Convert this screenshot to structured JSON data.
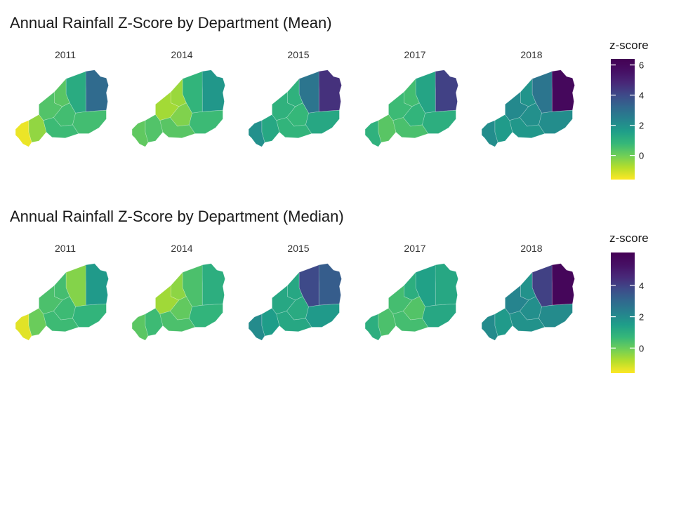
{
  "panels": [
    {
      "title": "Annual Rainfall Z-Score by Department (Mean)",
      "legend_title": "z-score",
      "legend_ticks": [
        "6",
        "4",
        "2",
        "0"
      ],
      "legend_range": [
        -1.6,
        6.4
      ],
      "facets": [
        {
          "year": "2011",
          "z": {
            "west": -1.4,
            "sw": -0.4,
            "central_w": 0.4,
            "central": 0.6,
            "north_mid": 0.3,
            "north_inner": 1.2,
            "northeast": 3.1,
            "south": 0.7,
            "southeast": 0.6
          }
        },
        {
          "year": "2014",
          "z": {
            "west": 0.2,
            "sw": 0.4,
            "central_w": -0.6,
            "central": -0.2,
            "north_mid": -0.5,
            "north_inner": 0.9,
            "northeast": 1.8,
            "south": 0.3,
            "southeast": 0.7
          }
        },
        {
          "year": "2015",
          "z": {
            "west": 2.0,
            "sw": 1.3,
            "central_w": 1.0,
            "central": 0.8,
            "north_mid": 1.0,
            "north_inner": 2.8,
            "northeast": 4.6,
            "south": 0.9,
            "southeast": 1.3
          }
        },
        {
          "year": "2017",
          "z": {
            "west": 1.0,
            "sw": 0.3,
            "central_w": 0.7,
            "central": 0.9,
            "north_mid": 0.6,
            "north_inner": 1.4,
            "northeast": 4.2,
            "south": 0.5,
            "southeast": 1.1
          }
        },
        {
          "year": "2018",
          "z": {
            "west": 2.1,
            "sw": 1.7,
            "central_w": 2.2,
            "central": 2.0,
            "north_mid": 1.9,
            "north_inner": 2.8,
            "northeast": 6.0,
            "south": 1.8,
            "southeast": 2.1
          }
        }
      ]
    },
    {
      "title": "Annual Rainfall Z-Score by Department (Median)",
      "legend_title": "z-score",
      "legend_ticks": [
        "4",
        "2",
        "0"
      ],
      "legend_range": [
        -1.6,
        6.1
      ],
      "facets": [
        {
          "year": "2011",
          "z": {
            "west": -1.3,
            "sw": 0.0,
            "central_w": 0.4,
            "central": 0.6,
            "north_mid": 0.5,
            "north_inner": -0.3,
            "northeast": 1.6,
            "south": 0.6,
            "southeast": 0.8
          }
        },
        {
          "year": "2014",
          "z": {
            "west": 0.2,
            "sw": 0.6,
            "central_w": -0.6,
            "central": 0.1,
            "north_mid": -0.4,
            "north_inner": 0.4,
            "northeast": 1.0,
            "south": 0.4,
            "southeast": 0.8
          }
        },
        {
          "year": "2015",
          "z": {
            "west": 2.0,
            "sw": 1.5,
            "central_w": 1.2,
            "central": 1.1,
            "north_mid": 1.2,
            "north_inner": 3.8,
            "northeast": 3.3,
            "south": 1.2,
            "southeast": 1.6
          }
        },
        {
          "year": "2017",
          "z": {
            "west": 1.0,
            "sw": 0.4,
            "central_w": 0.5,
            "central": 0.3,
            "north_mid": 1.0,
            "north_inner": 1.4,
            "northeast": 1.2,
            "south": 0.5,
            "southeast": 1.2
          }
        },
        {
          "year": "2018",
          "z": {
            "west": 2.0,
            "sw": 1.6,
            "central_w": 2.2,
            "central": 1.9,
            "north_mid": 1.8,
            "north_inner": 4.0,
            "northeast": 5.8,
            "south": 1.8,
            "southeast": 2.0
          }
        }
      ]
    }
  ]
}
